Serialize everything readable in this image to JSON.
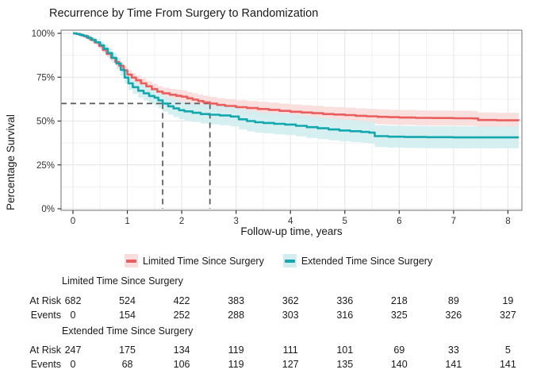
{
  "title": "Recurrence by Time From Surgery to Randomization",
  "chart_data": {
    "type": "line",
    "subtype": "kaplan-meier-step",
    "title": "Recurrence by Time From Surgery to Randomization",
    "xlabel": "Follow-up time, years",
    "ylabel": "Percentage Survival",
    "xlim": [
      -0.22,
      8.25
    ],
    "ylim": [
      0,
      100
    ],
    "x_ticks": [
      0,
      1,
      2,
      3,
      4,
      5,
      6,
      7,
      8
    ],
    "x_tick_labels": [
      "0",
      "1",
      "2",
      "3",
      "4",
      "5",
      "6",
      "7",
      "8"
    ],
    "y_ticks": [
      0,
      25,
      50,
      75,
      100
    ],
    "y_tick_labels": [
      "0%",
      "25%",
      "50%",
      "75%",
      "100%"
    ],
    "grid": "major+minor",
    "legend_position": "bottom",
    "colors": {
      "grid_major": "#e4e4e4",
      "grid_minor": "#f1f1f1",
      "panel_border": "#8a8a8a",
      "tick": "#333333",
      "reference": "#595959"
    },
    "series": [
      {
        "name": "Limited Time Since Surgery",
        "color": "#ea5e5e",
        "band_color": "#fadcdc",
        "ci_halfwidth_max": 4.3,
        "points": [
          [
            0,
            100
          ],
          [
            0.06,
            99.7
          ],
          [
            0.12,
            99.2
          ],
          [
            0.18,
            98.6
          ],
          [
            0.25,
            97.6
          ],
          [
            0.32,
            96.4
          ],
          [
            0.4,
            94.8
          ],
          [
            0.48,
            92.8
          ],
          [
            0.55,
            90.5
          ],
          [
            0.62,
            88.3
          ],
          [
            0.7,
            86
          ],
          [
            0.78,
            83.6
          ],
          [
            0.85,
            81.5
          ],
          [
            0.93,
            78.9
          ],
          [
            1.0,
            76.5
          ],
          [
            1.08,
            74.8
          ],
          [
            1.16,
            73.2
          ],
          [
            1.25,
            71.5
          ],
          [
            1.35,
            69.8
          ],
          [
            1.45,
            68.2
          ],
          [
            1.55,
            66.8
          ],
          [
            1.65,
            65.8
          ],
          [
            1.78,
            65
          ],
          [
            1.9,
            64.4
          ],
          [
            2.0,
            63.9
          ],
          [
            2.1,
            63
          ],
          [
            2.2,
            62.2
          ],
          [
            2.3,
            61.4
          ],
          [
            2.4,
            60.7
          ],
          [
            2.52,
            60
          ],
          [
            2.65,
            59.2
          ],
          [
            2.8,
            58.6
          ],
          [
            3.0,
            57.9
          ],
          [
            3.2,
            57.4
          ],
          [
            3.4,
            56.9
          ],
          [
            3.6,
            56.4
          ],
          [
            3.8,
            55.8
          ],
          [
            4.0,
            55.3
          ],
          [
            4.2,
            54.9
          ],
          [
            4.4,
            54.5
          ],
          [
            4.6,
            54
          ],
          [
            4.8,
            53.7
          ],
          [
            5.0,
            53.4
          ],
          [
            5.2,
            53
          ],
          [
            5.4,
            52.7
          ],
          [
            5.6,
            52.4
          ],
          [
            5.8,
            52.2
          ],
          [
            6.0,
            52
          ],
          [
            6.3,
            51.8
          ],
          [
            6.6,
            51.7
          ],
          [
            7.0,
            51.6
          ],
          [
            7.35,
            51.5
          ],
          [
            7.45,
            50.6
          ],
          [
            7.8,
            50.4
          ],
          [
            8.2,
            50.3
          ]
        ]
      },
      {
        "name": "Extended Time Since Surgery",
        "color": "#13a8ae",
        "band_color": "#d2edef",
        "ci_halfwidth_max": 6.3,
        "points": [
          [
            0,
            100
          ],
          [
            0.07,
            99.6
          ],
          [
            0.14,
            99
          ],
          [
            0.2,
            98.4
          ],
          [
            0.28,
            97.3
          ],
          [
            0.35,
            96.2
          ],
          [
            0.42,
            94.9
          ],
          [
            0.5,
            93.2
          ],
          [
            0.57,
            91.2
          ],
          [
            0.64,
            88.8
          ],
          [
            0.72,
            86
          ],
          [
            0.8,
            82.8
          ],
          [
            0.88,
            79.2
          ],
          [
            0.95,
            74.8
          ],
          [
            1.02,
            71.5
          ],
          [
            1.1,
            69.3
          ],
          [
            1.2,
            67.3
          ],
          [
            1.3,
            65.8
          ],
          [
            1.4,
            64.3
          ],
          [
            1.5,
            63.3
          ],
          [
            1.57,
            61.8
          ],
          [
            1.65,
            60
          ],
          [
            1.75,
            58.4
          ],
          [
            1.85,
            57.2
          ],
          [
            1.95,
            56.2
          ],
          [
            2.05,
            55.5
          ],
          [
            2.2,
            54.7
          ],
          [
            2.35,
            54
          ],
          [
            2.5,
            53.6
          ],
          [
            2.7,
            53.2
          ],
          [
            2.9,
            52.6
          ],
          [
            3.05,
            51
          ],
          [
            3.2,
            50
          ],
          [
            3.35,
            49.3
          ],
          [
            3.5,
            48.9
          ],
          [
            3.7,
            48.4
          ],
          [
            3.9,
            48
          ],
          [
            4.1,
            47.3
          ],
          [
            4.3,
            46.5
          ],
          [
            4.5,
            45.9
          ],
          [
            4.7,
            45.2
          ],
          [
            4.9,
            44.6
          ],
          [
            5.1,
            44.2
          ],
          [
            5.3,
            43.8
          ],
          [
            5.45,
            43.4
          ],
          [
            5.55,
            41.4
          ],
          [
            5.8,
            41.1
          ],
          [
            6.1,
            40.9
          ],
          [
            6.5,
            40.8
          ],
          [
            7.0,
            40.7
          ],
          [
            8.2,
            40.7
          ]
        ]
      }
    ],
    "reference_lines": {
      "horizontal_survival_pct": 60,
      "vertical_times_years": [
        1.65,
        2.52
      ],
      "style": "dashed"
    }
  },
  "risk_table": {
    "row_labels": {
      "at_risk": "At Risk",
      "events": "Events"
    },
    "time_points": [
      0,
      1,
      2,
      3,
      4,
      5,
      6,
      7,
      8
    ],
    "groups": [
      {
        "name": "Limited Time Since Surgery",
        "at_risk": [
          682,
          524,
          422,
          383,
          362,
          336,
          218,
          89,
          19
        ],
        "events": [
          0,
          154,
          252,
          288,
          303,
          316,
          325,
          326,
          327
        ]
      },
      {
        "name": "Extended Time Since Surgery",
        "at_risk": [
          247,
          175,
          134,
          119,
          111,
          101,
          69,
          33,
          5
        ],
        "events": [
          0,
          68,
          106,
          119,
          127,
          135,
          140,
          141,
          141
        ]
      }
    ]
  }
}
